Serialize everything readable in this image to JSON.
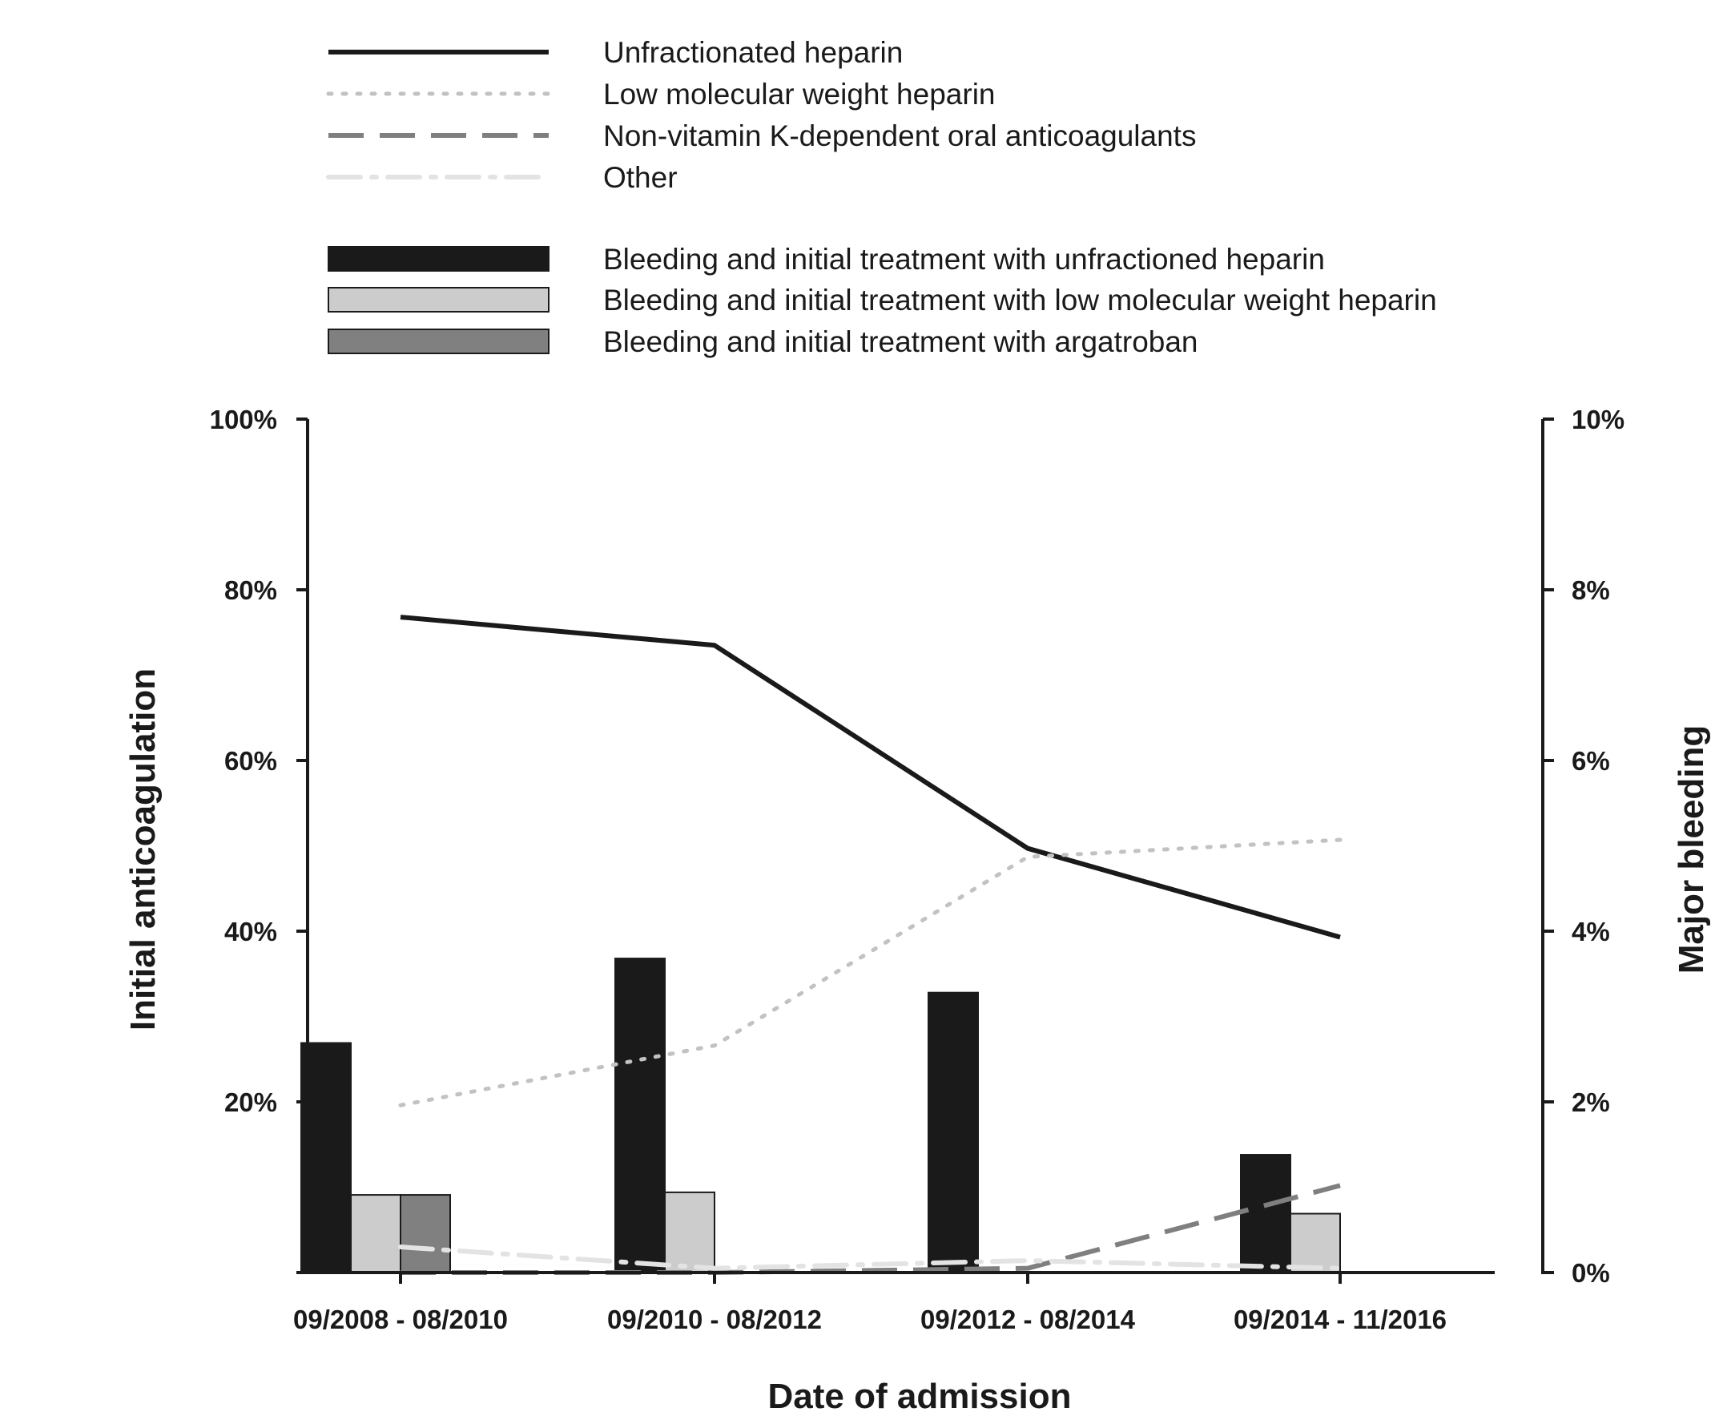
{
  "chart_data": {
    "type": "bar+line",
    "categories": [
      "09/2008 - 08/2010",
      "09/2010 - 08/2012",
      "09/2012 - 08/2014",
      "09/2014 - 11/2016"
    ],
    "xlabel": "Date of admission",
    "ylabel_left": "Initial anticoagulation",
    "ylabel_right": "Major bleeding",
    "ylim_left": [
      0,
      100
    ],
    "ylim_right": [
      0,
      10
    ],
    "yticks_left": [
      "",
      "20%",
      "40%",
      "60%",
      "80%",
      "100%"
    ],
    "yticks_right": [
      "0%",
      "2%",
      "4%",
      "6%",
      "8%",
      "10%"
    ],
    "line_series": [
      {
        "name": "Unfractionated heparin",
        "values": [
          76.8,
          73.5,
          49.7,
          39.3
        ],
        "color": "#1a1a1a",
        "dash": "solid"
      },
      {
        "name": "Low molecular weight heparin",
        "values": [
          19.6,
          26.6,
          48.7,
          50.7
        ],
        "color": "#c2c2c2",
        "dash": "dotted"
      },
      {
        "name": "Non-vitamin K-dependent oral anticoagulants",
        "values": [
          0,
          0,
          0.5,
          10.2
        ],
        "color": "#7f7f7f",
        "dash": "dashed"
      },
      {
        "name": "Other",
        "values": [
          3.0,
          0.5,
          1.4,
          0.5
        ],
        "color": "#e3e3e3",
        "dash": "dashdot"
      }
    ],
    "bar_series": [
      {
        "name": "Bleeding and initial treatment with unfractioned heparin",
        "values": [
          2.69,
          3.68,
          3.28,
          1.38
        ],
        "color": "#1a1a1a"
      },
      {
        "name": "Bleeding and initial treatment with low molecular weight heparin",
        "values": [
          0.91,
          0.94,
          0,
          0.69
        ],
        "color": "#cccccc"
      },
      {
        "name": "Bleeding and initial treatment with argatroban",
        "values": [
          0.91,
          0,
          0,
          0
        ],
        "color": "#808080"
      }
    ],
    "legend_placement": "top"
  }
}
